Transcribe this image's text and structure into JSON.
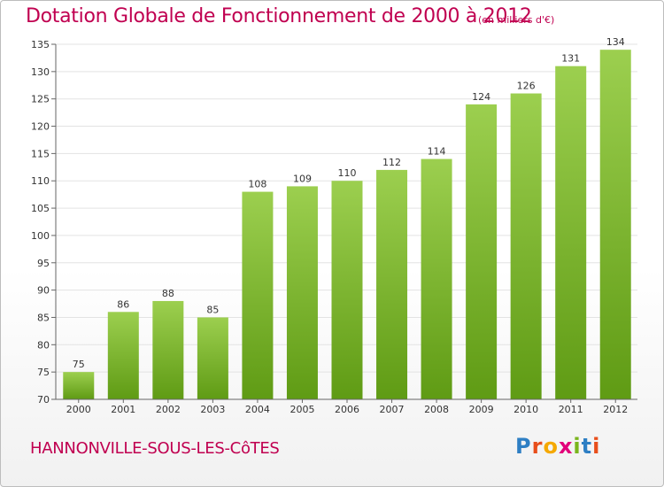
{
  "chart_data": {
    "type": "bar",
    "title": "Dotation Globale de Fonctionnement de 2000 à 2012",
    "unit_note": "(en milliers d'€)",
    "categories": [
      "2000",
      "2001",
      "2002",
      "2003",
      "2004",
      "2005",
      "2006",
      "2007",
      "2008",
      "2009",
      "2010",
      "2011",
      "2012"
    ],
    "values": [
      75,
      86,
      88,
      85,
      108,
      109,
      110,
      112,
      114,
      124,
      126,
      131,
      134
    ],
    "ylim": [
      70,
      135
    ],
    "yticks": [
      70,
      75,
      80,
      85,
      90,
      95,
      100,
      105,
      110,
      115,
      120,
      125,
      130,
      135
    ],
    "xlabel": "",
    "ylabel": "",
    "grid": true,
    "bar_color_top": "#9ccf4f",
    "bar_color_bottom": "#5f9b14"
  },
  "footer": {
    "commune": "HANNONVILLE-SOUS-LES-CôTES",
    "logo_letters": [
      "P",
      "r",
      "o",
      "x",
      "i",
      "t",
      "i"
    ],
    "logo_colors": [
      "#2e7fc4",
      "#e84e1b",
      "#f5a800",
      "#e2007a",
      "#7ab51d",
      "#2e7fc4",
      "#e84e1b"
    ]
  }
}
